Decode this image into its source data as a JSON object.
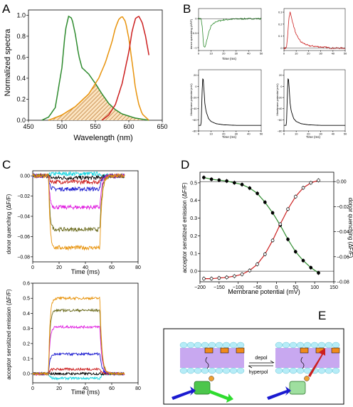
{
  "panel_letters": {
    "A": "A",
    "B": "B",
    "C": "C",
    "D": "D",
    "E": "E"
  },
  "colors": {
    "green": "#2e8b2e",
    "orange": "#e8930c",
    "red": "#cc1f1f",
    "blue": "#1a1ad0",
    "magenta": "#e020e0",
    "olive": "#6b6b1e",
    "cyan": "#19d5e0",
    "black": "#000000",
    "membrane_ball": "#b6ecf7",
    "membrane_tail": "#c8a8f0",
    "box": "#f08a1a"
  },
  "panel_E": {
    "depol": "depol",
    "hyperpol": "hyperpol"
  },
  "chart_data": [
    {
      "id": "A",
      "type": "line",
      "xlabel": "Wavelength (nm)",
      "ylabel": "Normalized spectra",
      "xlim": [
        450,
        650
      ],
      "ylim": [
        0,
        1.05
      ],
      "xticks": [
        450,
        500,
        550,
        600,
        650
      ],
      "yticks": [
        0.0,
        0.2,
        0.4,
        0.6,
        0.8,
        1.0
      ],
      "series": [
        {
          "color": "green",
          "x": [
            470,
            480,
            490,
            500,
            505,
            510,
            515,
            520,
            525,
            530,
            540,
            550,
            560,
            570,
            580,
            590,
            600,
            610,
            620,
            630
          ],
          "y": [
            0.0,
            0.03,
            0.12,
            0.5,
            0.85,
            0.99,
            0.97,
            0.82,
            0.62,
            0.5,
            0.44,
            0.35,
            0.25,
            0.16,
            0.1,
            0.06,
            0.04,
            0.02,
            0.01,
            0.0
          ]
        },
        {
          "color": "orange",
          "x": [
            480,
            500,
            520,
            540,
            555,
            565,
            575,
            580,
            585,
            590,
            595,
            600,
            605,
            610,
            615,
            620,
            630
          ],
          "y": [
            0.0,
            0.05,
            0.13,
            0.25,
            0.4,
            0.55,
            0.75,
            0.88,
            0.96,
            0.99,
            0.94,
            0.78,
            0.55,
            0.3,
            0.15,
            0.06,
            0.0
          ]
        },
        {
          "color": "red",
          "x": [
            560,
            570,
            580,
            590,
            600,
            605,
            610,
            615,
            620,
            625,
            630
          ],
          "y": [
            0.0,
            0.05,
            0.15,
            0.35,
            0.65,
            0.85,
            0.97,
            0.99,
            0.93,
            0.8,
            0.62
          ]
        }
      ],
      "hatched_overlap": true
    },
    {
      "id": "B1",
      "type": "line",
      "ylabel": "donor quenching (ΔF/F)",
      "xlabel": "Time (ms)",
      "xlim": [
        0,
        50
      ],
      "xticks": [
        0,
        10,
        20,
        30,
        40,
        50
      ],
      "yticks": [
        0.0,
        -0.5,
        -1.0
      ],
      "series": [
        {
          "color": "green",
          "x": [
            0,
            2,
            3,
            4,
            5,
            6,
            8,
            10,
            14,
            20,
            30,
            40,
            50
          ],
          "y": [
            0,
            0,
            -0.3,
            -0.95,
            -1.0,
            -0.85,
            -0.5,
            -0.25,
            -0.1,
            -0.04,
            -0.01,
            0,
            0
          ]
        }
      ]
    },
    {
      "id": "B2",
      "type": "line",
      "xlim": [
        0,
        50
      ],
      "xticks": [
        0,
        10,
        20,
        30,
        40,
        50
      ],
      "yticks": [
        0.0,
        0.1,
        0.2,
        0.3
      ],
      "series": [
        {
          "color": "red",
          "x": [
            0,
            2,
            3,
            4,
            5,
            6,
            8,
            10,
            14,
            20,
            30,
            40,
            50
          ],
          "y": [
            0,
            0,
            0.1,
            0.25,
            0.3,
            0.26,
            0.18,
            0.11,
            0.05,
            0.02,
            0.01,
            0,
            0
          ]
        }
      ]
    },
    {
      "id": "B3",
      "type": "line",
      "ylabel": "Membrane potential (mV)",
      "xlabel": "Time (ms)",
      "xlim": [
        0,
        50
      ],
      "ylim": [
        -80,
        30
      ],
      "xticks": [
        0,
        10,
        20,
        30,
        40,
        50
      ],
      "yticks": [
        20,
        0,
        -20,
        -40,
        -60,
        -80
      ],
      "series": [
        {
          "color": "black",
          "x": [
            0,
            2,
            3,
            3.5,
            4,
            5,
            6,
            8,
            10,
            14,
            20,
            30,
            50
          ],
          "y": [
            -70,
            -70,
            0,
            20,
            5,
            -30,
            -45,
            -58,
            -63,
            -67,
            -69,
            -70,
            -70
          ]
        }
      ]
    },
    {
      "id": "B4",
      "type": "line",
      "ylabel": "Membrane potential (mV)",
      "xlabel": "Time (ms)",
      "xlim": [
        0,
        50
      ],
      "ylim": [
        -80,
        30
      ],
      "xticks": [
        0,
        10,
        20,
        30,
        40,
        50
      ],
      "yticks": [
        20,
        0,
        -20,
        -40,
        -60,
        -80
      ],
      "series": [
        {
          "color": "black",
          "x": [
            0,
            2,
            3,
            3.5,
            4,
            5,
            6,
            8,
            10,
            14,
            20,
            30,
            50
          ],
          "y": [
            -70,
            -70,
            0,
            20,
            5,
            -30,
            -45,
            -58,
            -63,
            -67,
            -69,
            -70,
            -70
          ]
        }
      ]
    },
    {
      "id": "C1",
      "type": "line",
      "ylabel": "donor quenching (ΔF/F)",
      "xlabel": "Time (ms)",
      "xlim": [
        0,
        80
      ],
      "ylim": [
        -0.085,
        0.005
      ],
      "xticks": [
        0,
        20,
        40,
        60,
        80
      ],
      "yticks": [
        0.0,
        -0.02,
        -0.04,
        -0.06,
        -0.08
      ],
      "step_on": 12,
      "step_off": 51,
      "t_end": 70,
      "series": [
        {
          "color": "cyan",
          "level": 0.002
        },
        {
          "color": "black",
          "level": -0.002
        },
        {
          "color": "red",
          "level": -0.006
        },
        {
          "color": "blue",
          "level": -0.013
        },
        {
          "color": "magenta",
          "level": -0.031
        },
        {
          "color": "olive",
          "level": -0.053
        },
        {
          "color": "orange",
          "level": -0.071
        }
      ]
    },
    {
      "id": "C2",
      "type": "line",
      "ylabel": "acceptor sensitized emission (ΔF/F)",
      "xlabel": "Time (ms)",
      "xlim": [
        0,
        80
      ],
      "ylim": [
        -0.06,
        0.6
      ],
      "xticks": [
        0,
        20,
        40,
        60,
        80
      ],
      "yticks": [
        0.0,
        0.1,
        0.2,
        0.3,
        0.4,
        0.5,
        0.6
      ],
      "step_on": 12,
      "step_off": 51,
      "t_end": 70,
      "series": [
        {
          "color": "cyan",
          "level": -0.03
        },
        {
          "color": "black",
          "level": 0.0
        },
        {
          "color": "red",
          "level": 0.03
        },
        {
          "color": "blue",
          "level": 0.13
        },
        {
          "color": "magenta",
          "level": 0.31
        },
        {
          "color": "olive",
          "level": 0.42
        },
        {
          "color": "orange",
          "level": 0.5
        }
      ]
    },
    {
      "id": "D",
      "type": "scatter",
      "xlabel": "Membrane potential (mV)",
      "ylabel": "acceptor sensitized emission (ΔF/F)",
      "ylabel_right": "donor quenching (ΔF/F)",
      "xlim": [
        -200,
        150
      ],
      "ylim": [
        -0.06,
        0.56
      ],
      "ylim_right": [
        -0.08,
        0.0075
      ],
      "xticks": [
        -200,
        -150,
        -100,
        -50,
        0,
        50,
        100,
        150
      ],
      "yticks": [
        0.0,
        0.1,
        0.2,
        0.3,
        0.4,
        0.5
      ],
      "yticks_right": [
        0.0,
        -0.02,
        -0.04,
        -0.06,
        -0.08
      ],
      "series": [
        {
          "name": "",
          "color": "green",
          "axis": "left",
          "x": [
            -190,
            -170,
            -150,
            -130,
            -110,
            -90,
            -70,
            -50,
            -30,
            -10,
            10,
            30,
            50,
            70,
            90,
            110
          ],
          "y": [
            0.53,
            0.52,
            0.515,
            0.51,
            0.5,
            0.49,
            0.47,
            0.44,
            0.39,
            0.33,
            0.26,
            0.18,
            0.11,
            0.06,
            0.02,
            -0.01
          ]
        },
        {
          "name": "",
          "color": "red",
          "axis": "right",
          "x": [
            -190,
            -170,
            -150,
            -130,
            -110,
            -90,
            -70,
            -50,
            -30,
            -10,
            10,
            30,
            50,
            70,
            90,
            110
          ],
          "y": [
            -0.0775,
            -0.0775,
            -0.077,
            -0.0765,
            -0.0755,
            -0.074,
            -0.071,
            -0.066,
            -0.058,
            -0.047,
            -0.034,
            -0.022,
            -0.012,
            -0.005,
            -0.001,
            0.001
          ]
        }
      ]
    }
  ]
}
